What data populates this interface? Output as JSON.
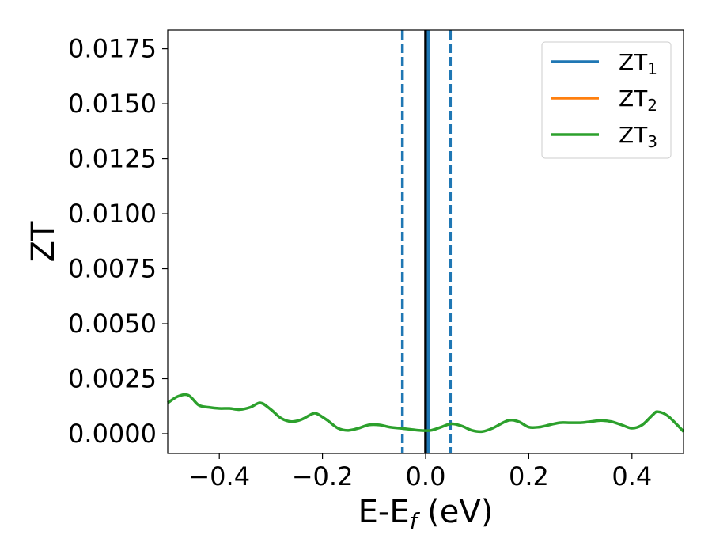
{
  "chart_data": {
    "type": "line",
    "xlabel": {
      "main": "E-E",
      "sub": "f",
      "unit": " (eV)"
    },
    "ylabel": "ZT",
    "xlim": [
      -0.5,
      0.5
    ],
    "ylim": [
      -0.0009,
      0.01835
    ],
    "xticks": [
      -0.4,
      -0.2,
      0.0,
      0.2,
      0.4
    ],
    "xtick_labels": [
      "−0.4",
      "−0.2",
      "0.0",
      "0.2",
      "0.4"
    ],
    "yticks": [
      0.0,
      0.0025,
      0.005,
      0.0075,
      0.01,
      0.0125,
      0.015,
      0.0175
    ],
    "ytick_labels": [
      "0.0000",
      "0.0025",
      "0.0050",
      "0.0075",
      "0.0100",
      "0.0125",
      "0.0150",
      "0.0175"
    ],
    "grid": false,
    "legend": {
      "placement": "top-right",
      "entries": [
        {
          "base": "ZT",
          "sub": "1",
          "color": "#1f77b4"
        },
        {
          "base": "ZT",
          "sub": "2",
          "color": "#ff7f0e"
        },
        {
          "base": "ZT",
          "sub": "3",
          "color": "#2ca02c"
        }
      ]
    },
    "vlines": [
      {
        "x": -0.045,
        "style": "dashed",
        "color": "#1f77b4"
      },
      {
        "x": 0.0,
        "style": "solid",
        "color": "#000000"
      },
      {
        "x": 0.005,
        "style": "solid",
        "color": "#1f77b4"
      },
      {
        "x": 0.048,
        "style": "dashed",
        "color": "#1f77b4"
      }
    ],
    "series": [
      {
        "name": "ZT3",
        "color": "#2ca02c",
        "x": [
          -0.5,
          -0.48,
          -0.46,
          -0.44,
          -0.42,
          -0.4,
          -0.38,
          -0.36,
          -0.34,
          -0.32,
          -0.3,
          -0.28,
          -0.26,
          -0.24,
          -0.22,
          -0.21,
          -0.19,
          -0.17,
          -0.15,
          -0.13,
          -0.11,
          -0.09,
          -0.07,
          -0.05,
          -0.03,
          -0.01,
          0.01,
          0.03,
          0.05,
          0.07,
          0.09,
          0.11,
          0.13,
          0.16,
          0.18,
          0.2,
          0.22,
          0.24,
          0.26,
          0.28,
          0.3,
          0.32,
          0.34,
          0.36,
          0.38,
          0.4,
          0.42,
          0.44,
          0.45,
          0.47,
          0.5
        ],
        "y": [
          0.0014,
          0.0017,
          0.00175,
          0.0013,
          0.0012,
          0.00115,
          0.00115,
          0.0011,
          0.0012,
          0.0014,
          0.0011,
          0.0007,
          0.00055,
          0.00065,
          0.0009,
          0.0009,
          0.0006,
          0.00025,
          0.00015,
          0.00025,
          0.0004,
          0.0004,
          0.0003,
          0.00025,
          0.0002,
          0.00015,
          0.00015,
          0.0003,
          0.00045,
          0.00035,
          0.00015,
          0.0001,
          0.00025,
          0.0006,
          0.00055,
          0.0003,
          0.0003,
          0.0004,
          0.0005,
          0.0005,
          0.0005,
          0.00055,
          0.0006,
          0.00055,
          0.0004,
          0.00025,
          0.0004,
          0.00085,
          0.001,
          0.0008,
          0.0001
        ]
      }
    ]
  }
}
